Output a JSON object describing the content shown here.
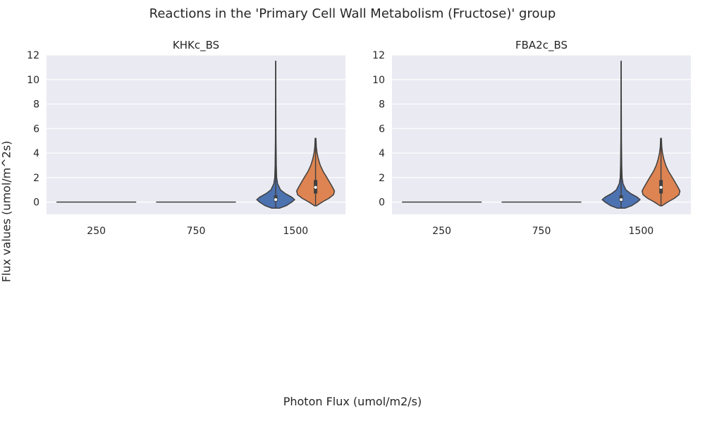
{
  "figure": {
    "title": "Reactions in the 'Primary Cell Wall Metabolism (Fructose)' group",
    "xlabel": "Photon Flux (umol/m2/s)",
    "ylabel": "Flux values (umol/m^2s)"
  },
  "colors": {
    "background": "#eaeaf2",
    "grid": "#ffffff",
    "series_a": "#4c72b0",
    "series_b": "#dd8452",
    "line": "#3f3f3f"
  },
  "chart_data": [
    {
      "type": "violin",
      "title": "KHKc_BS",
      "categories": [
        "250",
        "750",
        "1500"
      ],
      "ylim": [
        -1,
        12
      ],
      "yticks": [
        0,
        2,
        4,
        6,
        8,
        10,
        12
      ],
      "grid": true,
      "violins": [
        {
          "category": "250",
          "slot": "left",
          "color_key": "series_a",
          "flat": true,
          "value": 0
        },
        {
          "category": "750",
          "slot": "left",
          "color_key": "series_a",
          "flat": true,
          "value": 0
        },
        {
          "category": "1500",
          "slot": "left",
          "color_key": "series_a",
          "min": -0.5,
          "max": 11.5,
          "median": 0.2,
          "q1": 0.05,
          "q3": 0.55,
          "profile": [
            [
              -0.5,
              0.2
            ],
            [
              -0.3,
              0.55
            ],
            [
              0,
              0.85
            ],
            [
              0.2,
              1.0
            ],
            [
              0.4,
              0.85
            ],
            [
              0.7,
              0.5
            ],
            [
              1.0,
              0.25
            ],
            [
              1.5,
              0.1
            ],
            [
              2.0,
              0.05
            ],
            [
              3,
              0.03
            ],
            [
              5,
              0.015
            ],
            [
              7,
              0.01
            ],
            [
              9,
              0.006
            ],
            [
              11.5,
              0.004
            ]
          ]
        },
        {
          "category": "1500",
          "slot": "right",
          "color_key": "series_b",
          "min": -0.3,
          "max": 5.2,
          "median": 1.2,
          "q1": 0.7,
          "q3": 1.8,
          "profile": [
            [
              -0.3,
              0.05
            ],
            [
              0,
              0.35
            ],
            [
              0.3,
              0.7
            ],
            [
              0.6,
              0.95
            ],
            [
              0.9,
              1.0
            ],
            [
              1.2,
              0.9
            ],
            [
              1.6,
              0.75
            ],
            [
              2.0,
              0.6
            ],
            [
              2.5,
              0.4
            ],
            [
              3.0,
              0.25
            ],
            [
              3.5,
              0.15
            ],
            [
              4.0,
              0.08
            ],
            [
              4.5,
              0.04
            ],
            [
              5.2,
              0.02
            ]
          ]
        }
      ]
    },
    {
      "type": "violin",
      "title": "FBA2c_BS",
      "categories": [
        "250",
        "750",
        "1500"
      ],
      "ylim": [
        -1,
        12
      ],
      "yticks": [
        0,
        2,
        4,
        6,
        8,
        10,
        12
      ],
      "grid": true,
      "violins": [
        {
          "category": "250",
          "slot": "left",
          "color_key": "series_a",
          "flat": true,
          "value": 0
        },
        {
          "category": "750",
          "slot": "left",
          "color_key": "series_a",
          "flat": true,
          "value": 0
        },
        {
          "category": "1500",
          "slot": "left",
          "color_key": "series_a",
          "min": -0.5,
          "max": 11.5,
          "median": 0.2,
          "q1": 0.05,
          "q3": 0.55,
          "profile": [
            [
              -0.5,
              0.2
            ],
            [
              -0.3,
              0.55
            ],
            [
              0,
              0.85
            ],
            [
              0.2,
              1.0
            ],
            [
              0.4,
              0.85
            ],
            [
              0.7,
              0.5
            ],
            [
              1.0,
              0.25
            ],
            [
              1.5,
              0.1
            ],
            [
              2.0,
              0.05
            ],
            [
              3,
              0.03
            ],
            [
              5,
              0.015
            ],
            [
              7,
              0.01
            ],
            [
              9,
              0.006
            ],
            [
              11.5,
              0.004
            ]
          ]
        },
        {
          "category": "1500",
          "slot": "right",
          "color_key": "series_b",
          "min": -0.3,
          "max": 5.2,
          "median": 1.2,
          "q1": 0.7,
          "q3": 1.8,
          "profile": [
            [
              -0.3,
              0.05
            ],
            [
              0,
              0.35
            ],
            [
              0.3,
              0.7
            ],
            [
              0.6,
              0.95
            ],
            [
              0.9,
              1.0
            ],
            [
              1.2,
              0.9
            ],
            [
              1.6,
              0.75
            ],
            [
              2.0,
              0.6
            ],
            [
              2.5,
              0.4
            ],
            [
              3.0,
              0.25
            ],
            [
              3.5,
              0.15
            ],
            [
              4.0,
              0.08
            ],
            [
              4.5,
              0.04
            ],
            [
              5.2,
              0.02
            ]
          ]
        }
      ]
    }
  ]
}
